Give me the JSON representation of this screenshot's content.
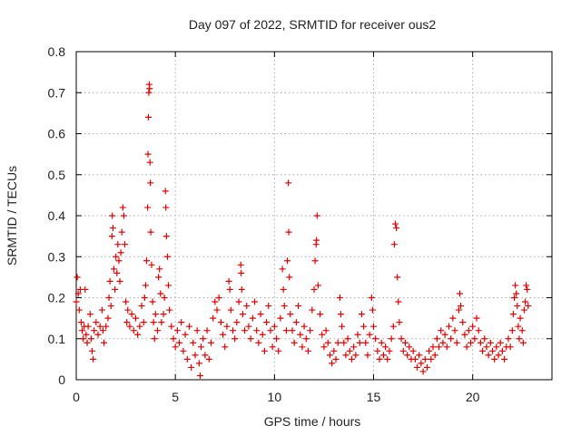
{
  "chart_data": {
    "type": "scatter",
    "title": "Day 097 of 2022, SRMTID for receiver ous2",
    "xlabel": "GPS time / hours",
    "ylabel": "SRMTID / TECUs",
    "xlim": [
      0,
      24
    ],
    "ylim": [
      0,
      0.8
    ],
    "xticks": [
      0,
      5,
      10,
      15,
      20
    ],
    "yticks": [
      0,
      0.1,
      0.2,
      0.3,
      0.4,
      0.5,
      0.6,
      0.7,
      0.8
    ],
    "xtick_labels": [
      "0",
      "5",
      "10",
      "15",
      "20"
    ],
    "ytick_labels": [
      "0",
      "0.1",
      "0.2",
      "0.3",
      "0.4",
      "0.5",
      "0.6",
      "0.7",
      "0.8"
    ],
    "grid": true,
    "marker": "plus",
    "color": "#e00000",
    "series": [
      {
        "name": "SRMTID",
        "points": [
          [
            0.0,
            0.19
          ],
          [
            0.05,
            0.25
          ],
          [
            0.1,
            0.21
          ],
          [
            0.15,
            0.17
          ],
          [
            0.2,
            0.22
          ],
          [
            0.25,
            0.14
          ],
          [
            0.3,
            0.12
          ],
          [
            0.35,
            0.1
          ],
          [
            0.4,
            0.13
          ],
          [
            0.45,
            0.22
          ],
          [
            0.5,
            0.11
          ],
          [
            0.55,
            0.09
          ],
          [
            0.6,
            0.13
          ],
          [
            0.7,
            0.16
          ],
          [
            0.75,
            0.1
          ],
          [
            0.8,
            0.07
          ],
          [
            0.85,
            0.05
          ],
          [
            0.9,
            0.12
          ],
          [
            1.0,
            0.14
          ],
          [
            1.1,
            0.11
          ],
          [
            1.2,
            0.13
          ],
          [
            1.3,
            0.17
          ],
          [
            1.35,
            0.12
          ],
          [
            1.4,
            0.09
          ],
          [
            1.5,
            0.13
          ],
          [
            1.6,
            0.15
          ],
          [
            1.65,
            0.2
          ],
          [
            1.7,
            0.24
          ],
          [
            1.75,
            0.18
          ],
          [
            1.8,
            0.35
          ],
          [
            1.82,
            0.4
          ],
          [
            1.85,
            0.37
          ],
          [
            1.9,
            0.27
          ],
          [
            1.95,
            0.22
          ],
          [
            2.0,
            0.3
          ],
          [
            2.05,
            0.26
          ],
          [
            2.1,
            0.33
          ],
          [
            2.15,
            0.29
          ],
          [
            2.2,
            0.24
          ],
          [
            2.25,
            0.31
          ],
          [
            2.3,
            0.36
          ],
          [
            2.35,
            0.42
          ],
          [
            2.4,
            0.4
          ],
          [
            2.45,
            0.33
          ],
          [
            2.5,
            0.19
          ],
          [
            2.55,
            0.14
          ],
          [
            2.6,
            0.17
          ],
          [
            2.7,
            0.13
          ],
          [
            2.8,
            0.16
          ],
          [
            2.9,
            0.12
          ],
          [
            3.0,
            0.15
          ],
          [
            3.1,
            0.11
          ],
          [
            3.2,
            0.13
          ],
          [
            3.3,
            0.18
          ],
          [
            3.4,
            0.14
          ],
          [
            3.45,
            0.2
          ],
          [
            3.5,
            0.23
          ],
          [
            3.55,
            0.29
          ],
          [
            3.6,
            0.42
          ],
          [
            3.62,
            0.55
          ],
          [
            3.64,
            0.64
          ],
          [
            3.66,
            0.7
          ],
          [
            3.68,
            0.72
          ],
          [
            3.7,
            0.71
          ],
          [
            3.72,
            0.53
          ],
          [
            3.74,
            0.48
          ],
          [
            3.76,
            0.36
          ],
          [
            3.8,
            0.28
          ],
          [
            3.85,
            0.19
          ],
          [
            3.9,
            0.14
          ],
          [
            3.95,
            0.1
          ],
          [
            4.0,
            0.16
          ],
          [
            4.1,
            0.12
          ],
          [
            4.15,
            0.25
          ],
          [
            4.2,
            0.27
          ],
          [
            4.25,
            0.21
          ],
          [
            4.3,
            0.14
          ],
          [
            4.4,
            0.16
          ],
          [
            4.45,
            0.2
          ],
          [
            4.5,
            0.46
          ],
          [
            4.52,
            0.42
          ],
          [
            4.55,
            0.35
          ],
          [
            4.6,
            0.3
          ],
          [
            4.65,
            0.23
          ],
          [
            4.7,
            0.17
          ],
          [
            4.8,
            0.13
          ],
          [
            4.9,
            0.1
          ],
          [
            5.0,
            0.08
          ],
          [
            5.1,
            0.12
          ],
          [
            5.2,
            0.09
          ],
          [
            5.3,
            0.14
          ],
          [
            5.4,
            0.07
          ],
          [
            5.5,
            0.11
          ],
          [
            5.6,
            0.05
          ],
          [
            5.7,
            0.13
          ],
          [
            5.8,
            0.03
          ],
          [
            5.9,
            0.09
          ],
          [
            6.0,
            0.06
          ],
          [
            6.1,
            0.12
          ],
          [
            6.2,
            0.04
          ],
          [
            6.25,
            0.01
          ],
          [
            6.3,
            0.08
          ],
          [
            6.4,
            0.1
          ],
          [
            6.5,
            0.06
          ],
          [
            6.6,
            0.12
          ],
          [
            6.7,
            0.05
          ],
          [
            6.8,
            0.09
          ],
          [
            6.9,
            0.15
          ],
          [
            7.0,
            0.19
          ],
          [
            7.1,
            0.17
          ],
          [
            7.2,
            0.2
          ],
          [
            7.3,
            0.14
          ],
          [
            7.4,
            0.11
          ],
          [
            7.5,
            0.08
          ],
          [
            7.6,
            0.13
          ],
          [
            7.7,
            0.24
          ],
          [
            7.75,
            0.22
          ],
          [
            7.8,
            0.17
          ],
          [
            7.9,
            0.12
          ],
          [
            8.0,
            0.1
          ],
          [
            8.1,
            0.14
          ],
          [
            8.2,
            0.19
          ],
          [
            8.3,
            0.28
          ],
          [
            8.32,
            0.26
          ],
          [
            8.35,
            0.22
          ],
          [
            8.4,
            0.16
          ],
          [
            8.5,
            0.12
          ],
          [
            8.6,
            0.18
          ],
          [
            8.7,
            0.13
          ],
          [
            8.8,
            0.1
          ],
          [
            8.9,
            0.15
          ],
          [
            9.0,
            0.19
          ],
          [
            9.1,
            0.12
          ],
          [
            9.2,
            0.09
          ],
          [
            9.3,
            0.16
          ],
          [
            9.4,
            0.11
          ],
          [
            9.5,
            0.07
          ],
          [
            9.6,
            0.14
          ],
          [
            9.7,
            0.18
          ],
          [
            9.8,
            0.12
          ],
          [
            9.9,
            0.08
          ],
          [
            10.0,
            0.13
          ],
          [
            10.1,
            0.1
          ],
          [
            10.2,
            0.07
          ],
          [
            10.3,
            0.15
          ],
          [
            10.4,
            0.27
          ],
          [
            10.45,
            0.22
          ],
          [
            10.5,
            0.18
          ],
          [
            10.6,
            0.12
          ],
          [
            10.65,
            0.29
          ],
          [
            10.7,
            0.48
          ],
          [
            10.72,
            0.36
          ],
          [
            10.75,
            0.25
          ],
          [
            10.8,
            0.16
          ],
          [
            10.9,
            0.12
          ],
          [
            11.0,
            0.09
          ],
          [
            11.1,
            0.14
          ],
          [
            11.2,
            0.18
          ],
          [
            11.3,
            0.11
          ],
          [
            11.4,
            0.08
          ],
          [
            11.5,
            0.13
          ],
          [
            11.6,
            0.1
          ],
          [
            11.7,
            0.07
          ],
          [
            11.8,
            0.12
          ],
          [
            11.9,
            0.17
          ],
          [
            12.0,
            0.22
          ],
          [
            12.05,
            0.29
          ],
          [
            12.1,
            0.33
          ],
          [
            12.12,
            0.34
          ],
          [
            12.15,
            0.4
          ],
          [
            12.2,
            0.23
          ],
          [
            12.3,
            0.16
          ],
          [
            12.4,
            0.11
          ],
          [
            12.5,
            0.08
          ],
          [
            12.6,
            0.12
          ],
          [
            12.7,
            0.09
          ],
          [
            12.8,
            0.06
          ],
          [
            12.9,
            0.04
          ],
          [
            13.0,
            0.07
          ],
          [
            13.1,
            0.05
          ],
          [
            13.2,
            0.09
          ],
          [
            13.3,
            0.2
          ],
          [
            13.35,
            0.16
          ],
          [
            13.4,
            0.13
          ],
          [
            13.5,
            0.09
          ],
          [
            13.6,
            0.06
          ],
          [
            13.7,
            0.1
          ],
          [
            13.8,
            0.07
          ],
          [
            13.9,
            0.05
          ],
          [
            14.0,
            0.08
          ],
          [
            14.1,
            0.06
          ],
          [
            14.2,
            0.11
          ],
          [
            14.3,
            0.09
          ],
          [
            14.4,
            0.16
          ],
          [
            14.5,
            0.13
          ],
          [
            14.6,
            0.09
          ],
          [
            14.7,
            0.06
          ],
          [
            14.8,
            0.11
          ],
          [
            14.9,
            0.2
          ],
          [
            14.95,
            0.17
          ],
          [
            15.0,
            0.13
          ],
          [
            15.1,
            0.1
          ],
          [
            15.2,
            0.07
          ],
          [
            15.3,
            0.05
          ],
          [
            15.4,
            0.09
          ],
          [
            15.5,
            0.06
          ],
          [
            15.6,
            0.08
          ],
          [
            15.7,
            0.05
          ],
          [
            15.8,
            0.07
          ],
          [
            15.9,
            0.1
          ],
          [
            16.0,
            0.13
          ],
          [
            16.05,
            0.33
          ],
          [
            16.1,
            0.38
          ],
          [
            16.15,
            0.37
          ],
          [
            16.2,
            0.25
          ],
          [
            16.25,
            0.19
          ],
          [
            16.3,
            0.14
          ],
          [
            16.4,
            0.1
          ],
          [
            16.5,
            0.07
          ],
          [
            16.6,
            0.09
          ],
          [
            16.7,
            0.06
          ],
          [
            16.8,
            0.08
          ],
          [
            16.9,
            0.05
          ],
          [
            17.0,
            0.07
          ],
          [
            17.1,
            0.05
          ],
          [
            17.2,
            0.03
          ],
          [
            17.3,
            0.06
          ],
          [
            17.4,
            0.04
          ],
          [
            17.5,
            0.02
          ],
          [
            17.6,
            0.05
          ],
          [
            17.7,
            0.03
          ],
          [
            17.8,
            0.07
          ],
          [
            17.9,
            0.05
          ],
          [
            18.0,
            0.08
          ],
          [
            18.1,
            0.06
          ],
          [
            18.2,
            0.1
          ],
          [
            18.3,
            0.08
          ],
          [
            18.4,
            0.12
          ],
          [
            18.5,
            0.09
          ],
          [
            18.6,
            0.11
          ],
          [
            18.7,
            0.08
          ],
          [
            18.8,
            0.13
          ],
          [
            18.9,
            0.1
          ],
          [
            19.0,
            0.15
          ],
          [
            19.1,
            0.12
          ],
          [
            19.2,
            0.09
          ],
          [
            19.3,
            0.17
          ],
          [
            19.35,
            0.21
          ],
          [
            19.4,
            0.18
          ],
          [
            19.5,
            0.14
          ],
          [
            19.6,
            0.11
          ],
          [
            19.7,
            0.08
          ],
          [
            19.8,
            0.12
          ],
          [
            19.9,
            0.09
          ],
          [
            20.0,
            0.13
          ],
          [
            20.1,
            0.1
          ],
          [
            20.2,
            0.15
          ],
          [
            20.3,
            0.12
          ],
          [
            20.4,
            0.09
          ],
          [
            20.5,
            0.07
          ],
          [
            20.6,
            0.1
          ],
          [
            20.7,
            0.08
          ],
          [
            20.8,
            0.06
          ],
          [
            20.9,
            0.09
          ],
          [
            21.0,
            0.07
          ],
          [
            21.1,
            0.05
          ],
          [
            21.2,
            0.08
          ],
          [
            21.3,
            0.06
          ],
          [
            21.4,
            0.09
          ],
          [
            21.5,
            0.07
          ],
          [
            21.6,
            0.05
          ],
          [
            21.7,
            0.08
          ],
          [
            21.8,
            0.1
          ],
          [
            21.9,
            0.08
          ],
          [
            22.0,
            0.12
          ],
          [
            22.05,
            0.16
          ],
          [
            22.1,
            0.2
          ],
          [
            22.15,
            0.23
          ],
          [
            22.2,
            0.21
          ],
          [
            22.25,
            0.18
          ],
          [
            22.3,
            0.13
          ],
          [
            22.35,
            0.1
          ],
          [
            22.4,
            0.15
          ],
          [
            22.5,
            0.12
          ],
          [
            22.55,
            0.09
          ],
          [
            22.6,
            0.17
          ],
          [
            22.65,
            0.19
          ],
          [
            22.7,
            0.23
          ],
          [
            22.75,
            0.22
          ],
          [
            22.8,
            0.18
          ]
        ]
      }
    ]
  }
}
